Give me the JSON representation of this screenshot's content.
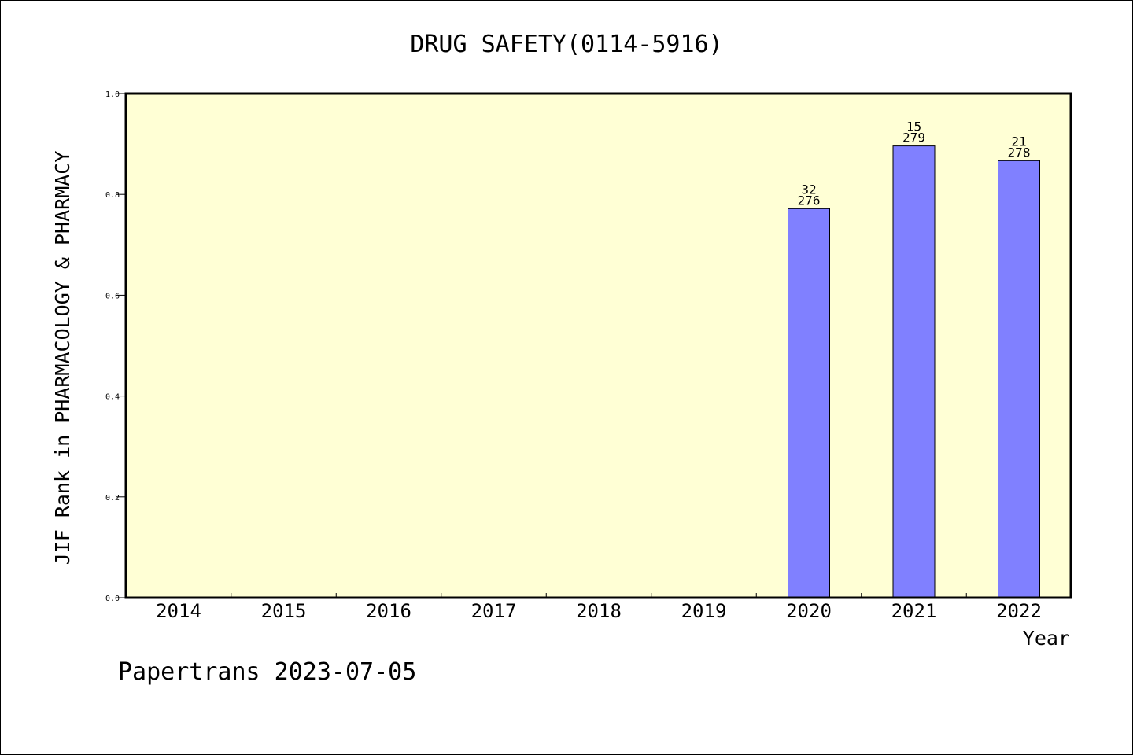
{
  "chart_data": {
    "type": "bar",
    "title": "DRUG SAFETY(0114-5916)",
    "xlabel": "Year",
    "ylabel": "JIF Rank in PHARMACOLOGY & PHARMACY",
    "categories": [
      "2014",
      "2015",
      "2016",
      "2017",
      "2018",
      "2019",
      "2020",
      "2021",
      "2022"
    ],
    "values": [
      null,
      null,
      null,
      null,
      null,
      null,
      0.7717,
      0.8961,
      0.8669
    ],
    "bar_labels": [
      null,
      null,
      null,
      null,
      null,
      null,
      {
        "rank": "32",
        "total": "276"
      },
      {
        "rank": "15",
        "total": "279"
      },
      {
        "rank": "21",
        "total": "278"
      }
    ],
    "ylim": [
      0,
      1.0
    ],
    "yticks": [
      "0.0",
      "0.2",
      "0.4",
      "0.6",
      "0.8",
      "1.0"
    ],
    "ytick_values": [
      0,
      0.2,
      0.4,
      0.6,
      0.8,
      1.0
    ],
    "grid": false,
    "colors": {
      "plot_background": "#ffffd5",
      "bar_fill": "#8080ff",
      "bar_stroke": "#000000"
    }
  },
  "footer": {
    "text": "Papertrans 2023-07-05"
  }
}
